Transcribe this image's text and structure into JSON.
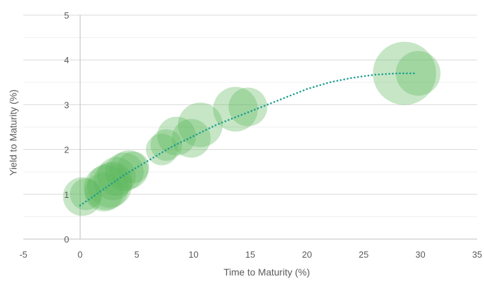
{
  "chart_data": {
    "type": "scatter",
    "subtype": "bubble",
    "title": "",
    "xlabel": "Time to Maturity (%)",
    "ylabel": "Yield to Maturity (%)",
    "xlim": [
      -5,
      35
    ],
    "ylim": [
      0,
      5
    ],
    "x_ticks": [
      -5,
      0,
      5,
      10,
      15,
      20,
      25,
      30,
      35
    ],
    "y_ticks": [
      0,
      1,
      2,
      3,
      4,
      5
    ],
    "grid": "horizontal",
    "legend": "none",
    "bubble_color": "#5cb85c",
    "trendline_color": "#1a9e8f",
    "points": [
      {
        "x": 0.2,
        "y": 0.95,
        "size": 3
      },
      {
        "x": 0.5,
        "y": 1.0,
        "size": 2
      },
      {
        "x": 2.1,
        "y": 1.05,
        "size": 3
      },
      {
        "x": 2.3,
        "y": 1.15,
        "size": 4
      },
      {
        "x": 2.6,
        "y": 1.2,
        "size": 4
      },
      {
        "x": 2.9,
        "y": 1.3,
        "size": 3
      },
      {
        "x": 3.2,
        "y": 1.4,
        "size": 3
      },
      {
        "x": 3.9,
        "y": 1.5,
        "size": 3
      },
      {
        "x": 4.3,
        "y": 1.55,
        "size": 3
      },
      {
        "x": 4.7,
        "y": 1.6,
        "size": 2
      },
      {
        "x": 7.2,
        "y": 2.0,
        "size": 2
      },
      {
        "x": 7.6,
        "y": 2.1,
        "size": 2
      },
      {
        "x": 8.5,
        "y": 2.3,
        "size": 3
      },
      {
        "x": 9.8,
        "y": 2.25,
        "size": 3
      },
      {
        "x": 10.6,
        "y": 2.55,
        "size": 4
      },
      {
        "x": 13.7,
        "y": 2.9,
        "size": 4
      },
      {
        "x": 14.8,
        "y": 2.95,
        "size": 3
      },
      {
        "x": 28.6,
        "y": 3.7,
        "size": 8
      },
      {
        "x": 29.8,
        "y": 3.7,
        "size": 4
      }
    ],
    "trendline": {
      "x": [
        0,
        2,
        4,
        6,
        8,
        10,
        12,
        14,
        16,
        18,
        20,
        22,
        24,
        26,
        28,
        29.5
      ],
      "y": [
        0.75,
        1.1,
        1.45,
        1.75,
        2.05,
        2.3,
        2.55,
        2.75,
        2.95,
        3.15,
        3.35,
        3.5,
        3.6,
        3.67,
        3.7,
        3.7
      ]
    }
  }
}
